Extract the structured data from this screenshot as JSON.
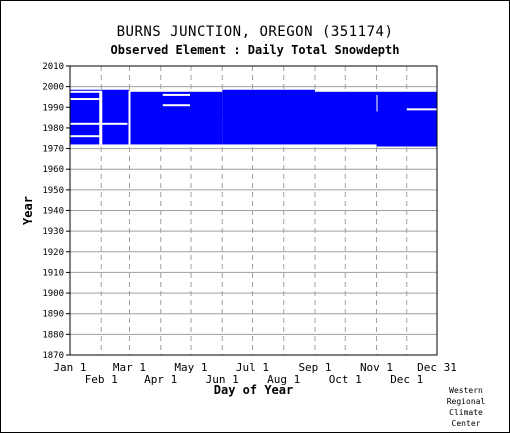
{
  "title": "BURNS JUNCTION, OREGON   (351174)",
  "subtitle": "Observed Element : Daily Total Snowdepth",
  "footer": [
    "Western",
    "Regional",
    "Climate",
    "Center"
  ],
  "chart_data": {
    "type": "heatmap",
    "xlabel": "Day of Year",
    "ylabel": "Year",
    "ylim": [
      1870,
      2010
    ],
    "xlim": [
      1,
      365
    ],
    "grid": true,
    "y_ticks": [
      1870,
      1880,
      1890,
      1900,
      1910,
      1920,
      1930,
      1940,
      1950,
      1960,
      1970,
      1980,
      1990,
      2000,
      2010
    ],
    "x_ticks_top_row": [
      {
        "label": "Jan 1",
        "day": 1
      },
      {
        "label": "Mar 1",
        "day": 60
      },
      {
        "label": "May 1",
        "day": 121
      },
      {
        "label": "Jul 1",
        "day": 182
      },
      {
        "label": "Sep 1",
        "day": 244
      },
      {
        "label": "Nov 1",
        "day": 305
      },
      {
        "label": "Dec 31",
        "day": 365
      }
    ],
    "x_ticks_bottom_row": [
      {
        "label": "Feb 1",
        "day": 32
      },
      {
        "label": "Apr 1",
        "day": 91
      },
      {
        "label": "Jun 1",
        "day": 152
      },
      {
        "label": "Aug 1",
        "day": 213
      },
      {
        "label": "Oct 1",
        "day": 274
      },
      {
        "label": "Dec 1",
        "day": 335
      }
    ],
    "color": "#0000ff",
    "data_blocks": [
      {
        "day_start": 1,
        "day_end": 60,
        "year_start": 1972,
        "year_end": 1998.5
      },
      {
        "day_start": 60,
        "day_end": 152,
        "year_start": 1972,
        "year_end": 1997.5
      },
      {
        "day_start": 152,
        "day_end": 244,
        "year_start": 1972,
        "year_end": 1998.5
      },
      {
        "day_start": 244,
        "day_end": 305,
        "year_start": 1972,
        "year_end": 1997.5
      },
      {
        "day_start": 305,
        "day_end": 365,
        "year_start": 1971,
        "year_end": 1997.5
      }
    ],
    "missing_lines": [
      {
        "day_start": 1,
        "day_end": 32,
        "year": 1976
      },
      {
        "day_start": 1,
        "day_end": 32,
        "year": 1982
      },
      {
        "day_start": 32,
        "day_end": 58,
        "year": 1982
      },
      {
        "day_start": 1,
        "day_end": 32,
        "year": 1994
      },
      {
        "day_start": 1,
        "day_end": 32,
        "year": 1997.5
      },
      {
        "day_start": 93,
        "day_end": 120,
        "year": 1996
      },
      {
        "day_start": 93,
        "day_end": 120,
        "year": 1991
      },
      {
        "day_start": 335,
        "day_end": 365,
        "year": 1989
      }
    ],
    "missing_gaps": [
      {
        "day_start": 59,
        "day_end": 61,
        "year_start": 1972,
        "year_end": 1998
      },
      {
        "day_start": 30,
        "day_end": 33,
        "year_start": 1972,
        "year_end": 1998
      },
      {
        "day_start": 305,
        "day_end": 306,
        "year_start": 1988,
        "year_end": 1996
      }
    ]
  }
}
